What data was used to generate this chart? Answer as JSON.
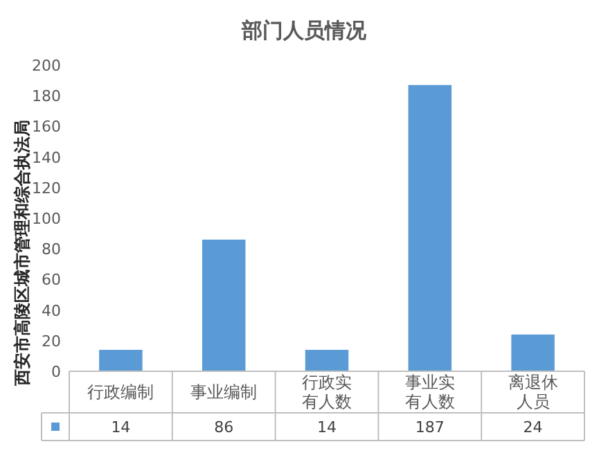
{
  "chart_data": {
    "type": "bar",
    "title": "部门人员情况",
    "ylabel": "西安市高陵区城市管理和综合执法局",
    "categories": [
      "行政编制",
      "事业编制",
      "行政实有人数",
      "事业实有人数",
      "离退休人员"
    ],
    "values": [
      14,
      86,
      14,
      187,
      24
    ],
    "color": "#5b9bd5",
    "ylim": [
      0,
      200
    ],
    "yticks": [
      0,
      20,
      40,
      60,
      80,
      100,
      120,
      140,
      160,
      180,
      200
    ],
    "grid": false,
    "data_labels": true
  }
}
